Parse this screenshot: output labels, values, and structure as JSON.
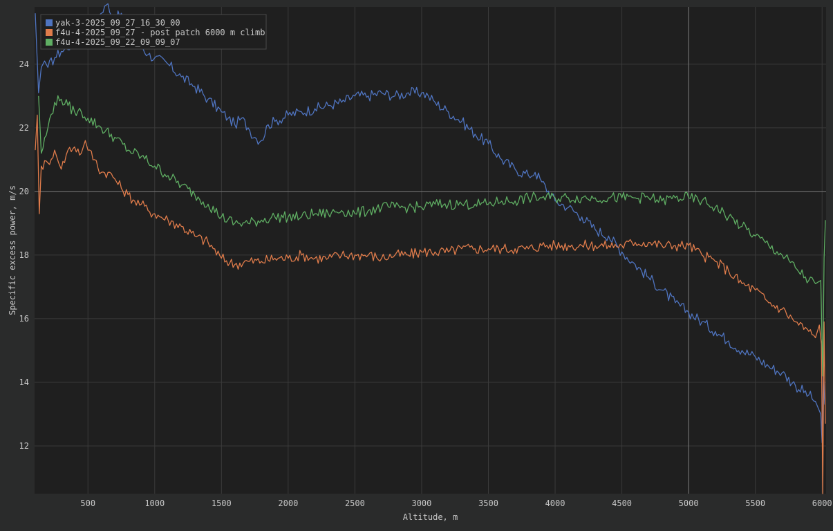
{
  "chart_data": {
    "type": "line",
    "title": "",
    "xlabel": "Altitude, m",
    "ylabel": "Specific excess power, m/s",
    "xlim": [
      100,
      6030
    ],
    "ylim": [
      10.5,
      25.8
    ],
    "x_ticks": [
      500,
      1000,
      1500,
      2000,
      2500,
      3000,
      3500,
      4000,
      4500,
      5000,
      5500,
      6000
    ],
    "y_ticks": [
      12,
      14,
      16,
      18,
      20,
      22,
      24
    ],
    "grid": true,
    "highlight_lines": {
      "x": 5000,
      "y": 20
    },
    "legend_position": "top-left",
    "colors": {
      "background": "#2a2b2b",
      "plot_background": "#1f1f1f",
      "grid": "#3a3a3a",
      "highlight": "#7a7a7a",
      "text": "#c8c8c8"
    },
    "series": [
      {
        "name": "yak-3-2025_09_27_16_30_00",
        "color": "#4f74c0",
        "points": [
          [
            105,
            25.6
          ],
          [
            130,
            23.1
          ],
          [
            150,
            23.9
          ],
          [
            175,
            24.1
          ],
          [
            200,
            23.9
          ],
          [
            250,
            24.2
          ],
          [
            300,
            24.4
          ],
          [
            400,
            24.7
          ],
          [
            500,
            25.1
          ],
          [
            600,
            25.6
          ],
          [
            650,
            25.9
          ],
          [
            700,
            25.4
          ],
          [
            750,
            25.6
          ],
          [
            800,
            25.0
          ],
          [
            850,
            24.8
          ],
          [
            900,
            24.6
          ],
          [
            950,
            24.3
          ],
          [
            1000,
            24.2
          ],
          [
            1100,
            24.0
          ],
          [
            1200,
            23.6
          ],
          [
            1300,
            23.3
          ],
          [
            1400,
            22.9
          ],
          [
            1500,
            22.5
          ],
          [
            1550,
            22.3
          ],
          [
            1600,
            22.1
          ],
          [
            1650,
            22.3
          ],
          [
            1700,
            22.0
          ],
          [
            1750,
            21.7
          ],
          [
            1800,
            21.6
          ],
          [
            1850,
            22.1
          ],
          [
            1900,
            22.2
          ],
          [
            2000,
            22.4
          ],
          [
            2100,
            22.5
          ],
          [
            2200,
            22.6
          ],
          [
            2300,
            22.7
          ],
          [
            2400,
            22.8
          ],
          [
            2500,
            23.0
          ],
          [
            2600,
            23.0
          ],
          [
            2700,
            23.1
          ],
          [
            2800,
            23.0
          ],
          [
            2900,
            23.1
          ],
          [
            3000,
            23.1
          ],
          [
            3050,
            23.0
          ],
          [
            3100,
            22.8
          ],
          [
            3200,
            22.5
          ],
          [
            3300,
            22.2
          ],
          [
            3400,
            21.8
          ],
          [
            3500,
            21.5
          ],
          [
            3600,
            21.0
          ],
          [
            3700,
            20.7
          ],
          [
            3800,
            20.5
          ],
          [
            3850,
            20.6
          ],
          [
            3900,
            20.3
          ],
          [
            4000,
            19.7
          ],
          [
            4100,
            19.5
          ],
          [
            4200,
            19.2
          ],
          [
            4300,
            18.8
          ],
          [
            4400,
            18.6
          ],
          [
            4500,
            18.1
          ],
          [
            4600,
            17.7
          ],
          [
            4700,
            17.3
          ],
          [
            4800,
            16.9
          ],
          [
            4900,
            16.5
          ],
          [
            5000,
            16.2
          ],
          [
            5100,
            15.9
          ],
          [
            5200,
            15.6
          ],
          [
            5300,
            15.3
          ],
          [
            5400,
            15.0
          ],
          [
            5500,
            14.8
          ],
          [
            5600,
            14.5
          ],
          [
            5700,
            14.3
          ],
          [
            5800,
            13.9
          ],
          [
            5900,
            13.6
          ],
          [
            5950,
            13.4
          ],
          [
            5990,
            13.0
          ],
          [
            6000,
            12.1
          ],
          [
            6010,
            14.2
          ],
          [
            6020,
            13.3
          ]
        ]
      },
      {
        "name": "f4u-4-2025_09_27 - post patch 6000 m climb",
        "color": "#e07c4b",
        "points": [
          [
            105,
            21.3
          ],
          [
            120,
            22.4
          ],
          [
            135,
            19.3
          ],
          [
            150,
            20.8
          ],
          [
            200,
            20.9
          ],
          [
            250,
            21.3
          ],
          [
            280,
            20.9
          ],
          [
            300,
            20.7
          ],
          [
            350,
            21.3
          ],
          [
            400,
            21.4
          ],
          [
            450,
            21.2
          ],
          [
            480,
            21.6
          ],
          [
            500,
            21.3
          ],
          [
            550,
            21.0
          ],
          [
            600,
            20.6
          ],
          [
            650,
            20.6
          ],
          [
            700,
            20.4
          ],
          [
            750,
            20.1
          ],
          [
            800,
            19.9
          ],
          [
            850,
            19.7
          ],
          [
            900,
            19.6
          ],
          [
            950,
            19.4
          ],
          [
            1000,
            19.3
          ],
          [
            1100,
            19.1
          ],
          [
            1200,
            18.9
          ],
          [
            1300,
            18.6
          ],
          [
            1400,
            18.4
          ],
          [
            1500,
            17.9
          ],
          [
            1600,
            17.7
          ],
          [
            1700,
            17.8
          ],
          [
            1800,
            17.8
          ],
          [
            1900,
            17.9
          ],
          [
            2000,
            17.9
          ],
          [
            2100,
            18.0
          ],
          [
            2200,
            17.9
          ],
          [
            2300,
            17.9
          ],
          [
            2400,
            18.0
          ],
          [
            2500,
            18.0
          ],
          [
            2600,
            18.0
          ],
          [
            2700,
            17.9
          ],
          [
            2800,
            18.0
          ],
          [
            2900,
            18.0
          ],
          [
            3000,
            18.1
          ],
          [
            3100,
            18.1
          ],
          [
            3200,
            18.1
          ],
          [
            3300,
            18.2
          ],
          [
            3400,
            18.2
          ],
          [
            3500,
            18.2
          ],
          [
            3600,
            18.2
          ],
          [
            3700,
            18.2
          ],
          [
            3800,
            18.2
          ],
          [
            3900,
            18.3
          ],
          [
            4000,
            18.3
          ],
          [
            4100,
            18.3
          ],
          [
            4200,
            18.3
          ],
          [
            4300,
            18.3
          ],
          [
            4400,
            18.3
          ],
          [
            4500,
            18.3
          ],
          [
            4600,
            18.4
          ],
          [
            4700,
            18.4
          ],
          [
            4800,
            18.3
          ],
          [
            4900,
            18.3
          ],
          [
            5000,
            18.3
          ],
          [
            5100,
            18.0
          ],
          [
            5200,
            17.8
          ],
          [
            5300,
            17.5
          ],
          [
            5400,
            17.1
          ],
          [
            5500,
            16.9
          ],
          [
            5600,
            16.5
          ],
          [
            5700,
            16.3
          ],
          [
            5800,
            15.9
          ],
          [
            5900,
            15.6
          ],
          [
            5950,
            15.4
          ],
          [
            5980,
            15.8
          ],
          [
            5995,
            15.2
          ],
          [
            6005,
            10.5
          ],
          [
            6015,
            15.9
          ],
          [
            6025,
            12.7
          ]
        ]
      },
      {
        "name": "f4u-4-2025_09_22_09_09_07",
        "color": "#5fae63",
        "points": [
          [
            130,
            23.0
          ],
          [
            150,
            21.2
          ],
          [
            200,
            22.0
          ],
          [
            250,
            22.8
          ],
          [
            300,
            22.9
          ],
          [
            350,
            22.7
          ],
          [
            400,
            22.5
          ],
          [
            450,
            22.5
          ],
          [
            500,
            22.3
          ],
          [
            600,
            22.0
          ],
          [
            700,
            21.7
          ],
          [
            800,
            21.3
          ],
          [
            900,
            21.1
          ],
          [
            1000,
            20.8
          ],
          [
            1100,
            20.5
          ],
          [
            1200,
            20.2
          ],
          [
            1300,
            19.9
          ],
          [
            1400,
            19.6
          ],
          [
            1500,
            19.2
          ],
          [
            1600,
            19.0
          ],
          [
            1700,
            19.0
          ],
          [
            1800,
            19.1
          ],
          [
            1900,
            19.2
          ],
          [
            2000,
            19.2
          ],
          [
            2100,
            19.2
          ],
          [
            2200,
            19.3
          ],
          [
            2300,
            19.3
          ],
          [
            2400,
            19.4
          ],
          [
            2500,
            19.3
          ],
          [
            2600,
            19.4
          ],
          [
            2700,
            19.5
          ],
          [
            2800,
            19.5
          ],
          [
            2900,
            19.5
          ],
          [
            3000,
            19.5
          ],
          [
            3100,
            19.6
          ],
          [
            3200,
            19.6
          ],
          [
            3300,
            19.6
          ],
          [
            3400,
            19.6
          ],
          [
            3500,
            19.6
          ],
          [
            3600,
            19.7
          ],
          [
            3700,
            19.7
          ],
          [
            3800,
            19.8
          ],
          [
            3900,
            19.8
          ],
          [
            4000,
            19.8
          ],
          [
            4100,
            19.8
          ],
          [
            4200,
            19.8
          ],
          [
            4300,
            19.8
          ],
          [
            4400,
            19.8
          ],
          [
            4500,
            19.8
          ],
          [
            4600,
            19.8
          ],
          [
            4700,
            19.8
          ],
          [
            4800,
            19.7
          ],
          [
            4900,
            19.8
          ],
          [
            5000,
            19.8
          ],
          [
            5100,
            19.7
          ],
          [
            5200,
            19.5
          ],
          [
            5300,
            19.2
          ],
          [
            5400,
            18.9
          ],
          [
            5500,
            18.6
          ],
          [
            5600,
            18.3
          ],
          [
            5700,
            18.0
          ],
          [
            5800,
            17.6
          ],
          [
            5900,
            17.2
          ],
          [
            5950,
            17.1
          ],
          [
            5990,
            17.2
          ],
          [
            6005,
            14.2
          ],
          [
            6015,
            17.9
          ],
          [
            6025,
            19.1
          ]
        ]
      }
    ]
  }
}
